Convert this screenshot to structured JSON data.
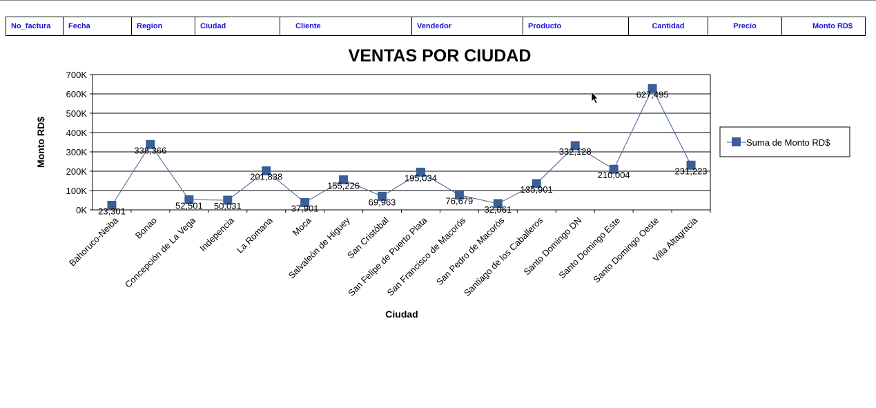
{
  "header": {
    "columns": [
      "No_factura",
      "Fecha",
      "Region",
      "Ciudad",
      "Cliente",
      "Vendedor",
      "Producto",
      "Cantidad",
      "Precio",
      "Monto RD$"
    ]
  },
  "chart_data": {
    "type": "line",
    "title": "VENTAS POR CIUDAD",
    "xlabel": "Ciudad",
    "ylabel": "Monto RD$",
    "ylim": [
      0,
      700000
    ],
    "yticks": [
      "0K",
      "100K",
      "200K",
      "300K",
      "400K",
      "500K",
      "600K",
      "700K"
    ],
    "grid": true,
    "legend_position": "right",
    "colors": {
      "series": "#3a5f96",
      "grid": "#000000"
    },
    "categories": [
      "Bahoruco-Neiba",
      "Bonao",
      "Concepción de La Vega",
      "Indepencia",
      "La Romana",
      "Moca",
      "Salvaleón de Higuey",
      "San Cristóbal",
      "San Felipe de Puerto Plata",
      "San Francisco de Macorós",
      "San Pedro de Macorós",
      "Santiago de los Caballeros",
      "Santo Domingo DN",
      "Santo Domingo Este",
      "Santo Domingo Oeste",
      "Villa Altagracia"
    ],
    "series": [
      {
        "name": "Suma de Monto RD$",
        "values": [
          23301,
          338366,
          52501,
          50031,
          201838,
          37901,
          155226,
          69963,
          195034,
          76679,
          32061,
          135901,
          332128,
          210004,
          627495,
          231223
        ],
        "labels": [
          "23,301",
          "338,366",
          "52,501",
          "50,031",
          "201,838",
          "37,901",
          "155,226",
          "69,963",
          "195,034",
          "76,679",
          "32,061",
          "135,901",
          "332,128",
          "210,004",
          "627,495",
          "231,223"
        ]
      }
    ]
  }
}
